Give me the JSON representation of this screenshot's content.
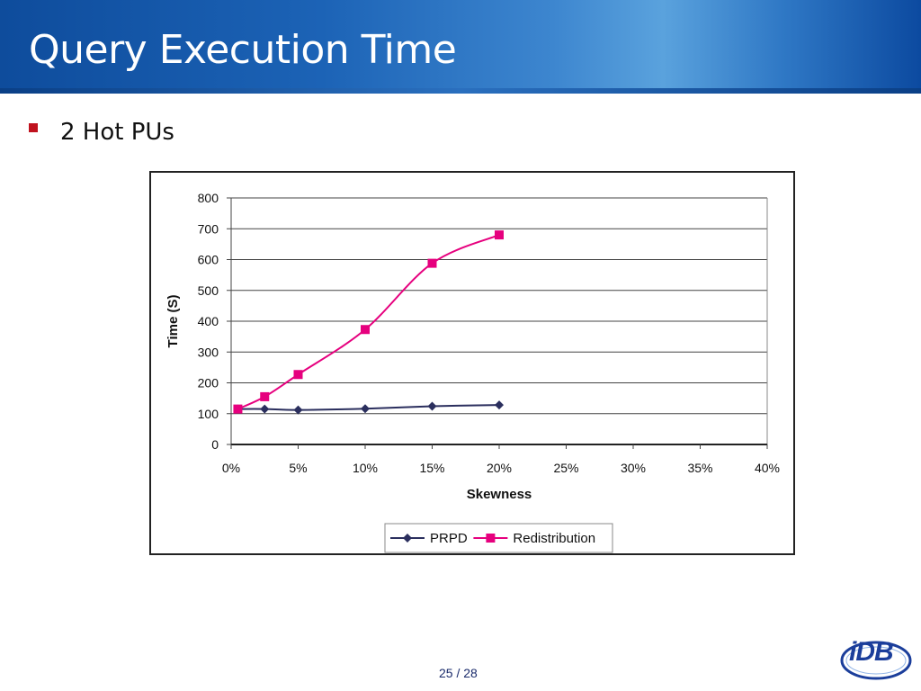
{
  "slide": {
    "title": "Query Execution Time",
    "bullet": "2 Hot PUs",
    "page_number": "25 / 28",
    "logo_text": "iDB",
    "accent_color": "#c0121e",
    "header_color": "#1c63b6"
  },
  "chart_data": {
    "type": "line",
    "title": "",
    "xlabel": "Skewness",
    "ylabel": "Time (S)",
    "x_tick_labels": [
      "0%",
      "5%",
      "10%",
      "15%",
      "20%",
      "25%",
      "30%",
      "35%",
      "40%"
    ],
    "y_tick_labels": [
      "0",
      "100",
      "200",
      "300",
      "400",
      "500",
      "600",
      "700",
      "800"
    ],
    "xlim": [
      0,
      40
    ],
    "ylim": [
      0,
      800
    ],
    "grid": "horizontal",
    "legend_position": "bottom",
    "series": [
      {
        "name": "PRPD",
        "color": "#2b2f5e",
        "marker": "diamond",
        "x": [
          0.5,
          2.5,
          5,
          10,
          15,
          20
        ],
        "y": [
          115,
          115,
          112,
          116,
          124,
          128
        ]
      },
      {
        "name": "Redistribution",
        "color": "#e6007e",
        "marker": "square",
        "x": [
          0.5,
          2.5,
          5,
          10,
          15,
          20
        ],
        "y": [
          115,
          155,
          227,
          373,
          588,
          680
        ]
      }
    ]
  }
}
